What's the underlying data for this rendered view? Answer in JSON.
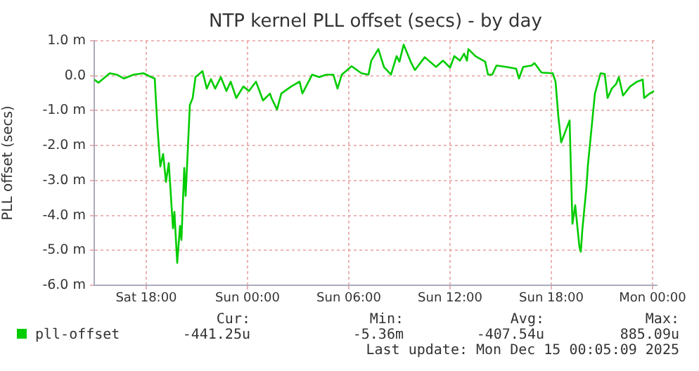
{
  "chart_data": {
    "type": "line",
    "title": "NTP kernel PLL offset (secs) - by day",
    "ylabel": "PLL offset (secs)",
    "xlim": [
      "2025-12-13T14:55",
      "2025-12-15T00:15"
    ],
    "xticks": [
      {
        "value": "2025-12-13T18:00",
        "label": "Sat 18:00"
      },
      {
        "value": "2025-12-14T00:00",
        "label": "Sun 00:00"
      },
      {
        "value": "2025-12-14T06:00",
        "label": "Sun 06:00"
      },
      {
        "value": "2025-12-14T12:00",
        "label": "Sun 12:00"
      },
      {
        "value": "2025-12-14T18:00",
        "label": "Sun 18:00"
      },
      {
        "value": "2025-12-15T00:00",
        "label": "Mon 00:00"
      }
    ],
    "ylim": [
      -6,
      1
    ],
    "yticks": [
      {
        "value": -6,
        "label": "-6.0 m"
      },
      {
        "value": -5,
        "label": "-5.0 m"
      },
      {
        "value": -4,
        "label": "-4.0 m"
      },
      {
        "value": -3,
        "label": "-3.0 m"
      },
      {
        "value": -2,
        "label": "-2.0 m"
      },
      {
        "value": -1,
        "label": "-1.0 m"
      },
      {
        "value": 0,
        "label": "0.0"
      },
      {
        "value": 1,
        "label": "1.0 m"
      }
    ],
    "grid": true,
    "legend": "bottom left",
    "marker": "none",
    "line_style": "solid",
    "x": [
      "2025-12-13T14:55",
      "2025-12-13T15:10",
      "2025-12-13T15:50",
      "2025-12-13T16:15",
      "2025-12-13T16:40",
      "2025-12-13T17:15",
      "2025-12-13T17:50",
      "2025-12-13T18:10",
      "2025-12-13T18:30",
      "2025-12-13T18:40",
      "2025-12-13T18:50",
      "2025-12-13T19:00",
      "2025-12-13T19:10",
      "2025-12-13T19:20",
      "2025-12-13T19:35",
      "2025-12-13T19:40",
      "2025-12-13T19:50",
      "2025-12-13T20:00",
      "2025-12-13T20:05",
      "2025-12-13T20:15",
      "2025-12-13T20:20",
      "2025-12-13T20:35",
      "2025-12-13T20:45",
      "2025-12-13T20:55",
      "2025-12-13T21:20",
      "2025-12-13T21:35",
      "2025-12-13T21:50",
      "2025-12-13T22:05",
      "2025-12-13T22:25",
      "2025-12-13T22:45",
      "2025-12-13T23:00",
      "2025-12-13T23:20",
      "2025-12-13T23:45",
      "2025-12-14T00:05",
      "2025-12-14T00:30",
      "2025-12-14T00:55",
      "2025-12-14T01:20",
      "2025-12-14T01:25",
      "2025-12-14T01:45",
      "2025-12-14T02:00",
      "2025-12-14T02:35",
      "2025-12-14T03:05",
      "2025-12-14T03:15",
      "2025-12-14T03:50",
      "2025-12-14T04:15",
      "2025-12-14T04:40",
      "2025-12-14T05:05",
      "2025-12-14T05:20",
      "2025-12-14T05:35",
      "2025-12-14T06:10",
      "2025-12-14T06:45",
      "2025-12-14T07:10",
      "2025-12-14T07:20",
      "2025-12-14T07:45",
      "2025-12-14T08:05",
      "2025-12-14T08:30",
      "2025-12-14T08:50",
      "2025-12-14T09:00",
      "2025-12-14T09:15",
      "2025-12-14T09:40",
      "2025-12-14T09:55",
      "2025-12-14T10:30",
      "2025-12-14T11:10",
      "2025-12-14T11:35",
      "2025-12-14T12:00",
      "2025-12-14T12:15",
      "2025-12-14T12:35",
      "2025-12-14T12:50",
      "2025-12-14T13:00",
      "2025-12-14T13:05",
      "2025-12-14T13:30",
      "2025-12-14T14:05",
      "2025-12-14T14:15",
      "2025-12-14T14:30",
      "2025-12-14T14:45",
      "2025-12-14T15:20",
      "2025-12-14T15:55",
      "2025-12-14T16:05",
      "2025-12-14T16:20",
      "2025-12-14T16:50",
      "2025-12-14T17:00",
      "2025-12-14T17:25",
      "2025-12-14T18:05",
      "2025-12-14T18:15",
      "2025-12-14T18:25",
      "2025-12-14T18:35",
      "2025-12-14T19:05",
      "2025-12-14T19:15",
      "2025-12-14T19:25",
      "2025-12-14T19:40",
      "2025-12-14T19:45",
      "2025-12-14T19:50",
      "2025-12-14T20:05",
      "2025-12-14T20:10",
      "2025-12-14T20:35",
      "2025-12-14T20:55",
      "2025-12-14T21:10",
      "2025-12-14T21:20",
      "2025-12-14T21:35",
      "2025-12-14T21:50",
      "2025-12-14T22:00",
      "2025-12-14T22:15",
      "2025-12-14T22:40",
      "2025-12-14T23:05",
      "2025-12-14T23:25",
      "2025-12-14T23:30",
      "2025-12-14T23:50",
      "2025-12-15T00:05"
    ],
    "series": [
      {
        "name": "pll-offset",
        "color": "#00cc00",
        "values": [
          -0.11,
          -0.2,
          0.07,
          0.03,
          -0.08,
          0.03,
          0.07,
          -0.01,
          -0.08,
          -1.5,
          -2.6,
          -2.24,
          -3.04,
          -2.5,
          -4.37,
          -3.9,
          -5.36,
          -4.3,
          -4.7,
          -2.64,
          -3.44,
          -0.84,
          -0.64,
          -0.04,
          0.13,
          -0.37,
          -0.1,
          -0.37,
          -0.04,
          -0.44,
          -0.17,
          -0.64,
          -0.31,
          -0.44,
          -0.17,
          -0.71,
          -0.51,
          -0.64,
          -0.97,
          -0.51,
          -0.31,
          -0.17,
          -0.51,
          0.03,
          -0.04,
          0.03,
          0.03,
          -0.37,
          0.03,
          0.27,
          0.07,
          0.03,
          0.43,
          0.76,
          0.25,
          0.03,
          0.56,
          0.4,
          0.89,
          0.4,
          0.16,
          0.53,
          0.25,
          0.43,
          0.23,
          0.56,
          0.43,
          0.63,
          0.43,
          0.76,
          0.56,
          0.4,
          0.03,
          0.03,
          0.29,
          0.25,
          0.2,
          -0.08,
          0.25,
          0.29,
          0.36,
          0.09,
          0.07,
          -0.17,
          -1.17,
          -1.91,
          -1.28,
          -4.24,
          -3.71,
          -4.91,
          -5.04,
          -4.44,
          -3.17,
          -2.57,
          -0.51,
          0.07,
          0.05,
          -0.64,
          -0.37,
          -0.24,
          -0.04,
          -0.57,
          -0.31,
          -0.17,
          -0.11,
          -0.64,
          -0.51,
          -0.44
        ]
      }
    ],
    "annotations": [
      "Cur:",
      "Min:",
      "Avg:",
      "Max:",
      "-441.25u",
      "-5.36m",
      "-407.54u",
      "885.09u",
      "Last update: Mon Dec 15 00:05:09 2025"
    ]
  }
}
